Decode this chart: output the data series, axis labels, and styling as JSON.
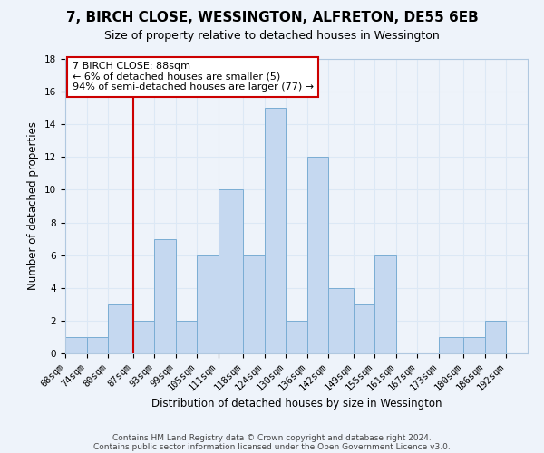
{
  "title": "7, BIRCH CLOSE, WESSINGTON, ALFRETON, DE55 6EB",
  "subtitle": "Size of property relative to detached houses in Wessington",
  "xlabel": "Distribution of detached houses by size in Wessington",
  "ylabel": "Number of detached properties",
  "bins": [
    "68sqm",
    "74sqm",
    "80sqm",
    "87sqm",
    "93sqm",
    "99sqm",
    "105sqm",
    "111sqm",
    "118sqm",
    "124sqm",
    "130sqm",
    "136sqm",
    "142sqm",
    "149sqm",
    "155sqm",
    "161sqm",
    "167sqm",
    "173sqm",
    "180sqm",
    "186sqm",
    "192sqm"
  ],
  "bin_edges": [
    68,
    74,
    80,
    87,
    93,
    99,
    105,
    111,
    118,
    124,
    130,
    136,
    142,
    149,
    155,
    161,
    167,
    173,
    180,
    186,
    192
  ],
  "values": [
    1,
    1,
    3,
    2,
    7,
    2,
    6,
    10,
    6,
    15,
    2,
    12,
    4,
    3,
    6,
    0,
    0,
    1,
    1,
    2,
    0
  ],
  "bar_color": "#c5d8f0",
  "bar_edge_color": "#7aadd4",
  "vline_x": 87,
  "vline_color": "#cc0000",
  "annotation_line1": "7 BIRCH CLOSE: 88sqm",
  "annotation_line2": "← 6% of detached houses are smaller (5)",
  "annotation_line3": "94% of semi-detached houses are larger (77) →",
  "ylim": [
    0,
    18
  ],
  "yticks": [
    0,
    2,
    4,
    6,
    8,
    10,
    12,
    14,
    16,
    18
  ],
  "grid_color": "#dce8f5",
  "footer_line1": "Contains HM Land Registry data © Crown copyright and database right 2024.",
  "footer_line2": "Contains public sector information licensed under the Open Government Licence v3.0.",
  "background_color": "#eef3fa",
  "title_fontsize": 11,
  "subtitle_fontsize": 9,
  "axis_label_fontsize": 8.5,
  "tick_fontsize": 7.5
}
